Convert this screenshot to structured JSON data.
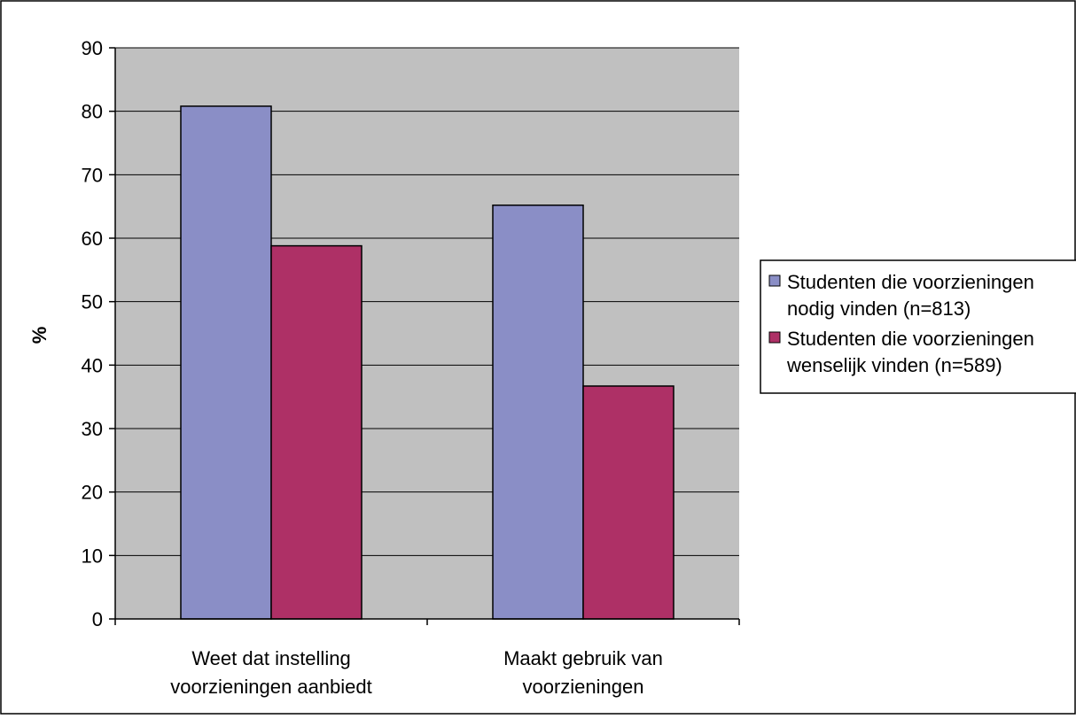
{
  "chart_data": {
    "type": "bar",
    "title": "",
    "xlabel": "",
    "ylabel": "%",
    "ylim": [
      0,
      90
    ],
    "yticks": [
      0,
      10,
      20,
      30,
      40,
      50,
      60,
      70,
      80,
      90
    ],
    "grid": true,
    "legend_position": "right",
    "categories": [
      [
        "Weet dat instelling",
        "voorzieningen aanbiedt"
      ],
      [
        "Maakt gebruik van",
        "voorzieningen"
      ]
    ],
    "series": [
      {
        "name": [
          "Studenten die voorzieningen",
          "nodig vinden (n=813)"
        ],
        "color": "#8a8ec6",
        "values": [
          80.8,
          65.2
        ]
      },
      {
        "name": [
          "Studenten die voorzieningen",
          "wenselijk vinden (n=589)"
        ],
        "color": "#ae3066",
        "values": [
          58.8,
          36.7
        ]
      }
    ],
    "colors": {
      "plot_background": "#c0c0c0",
      "gridline": "#000000",
      "bar_outline": "#000000"
    }
  }
}
